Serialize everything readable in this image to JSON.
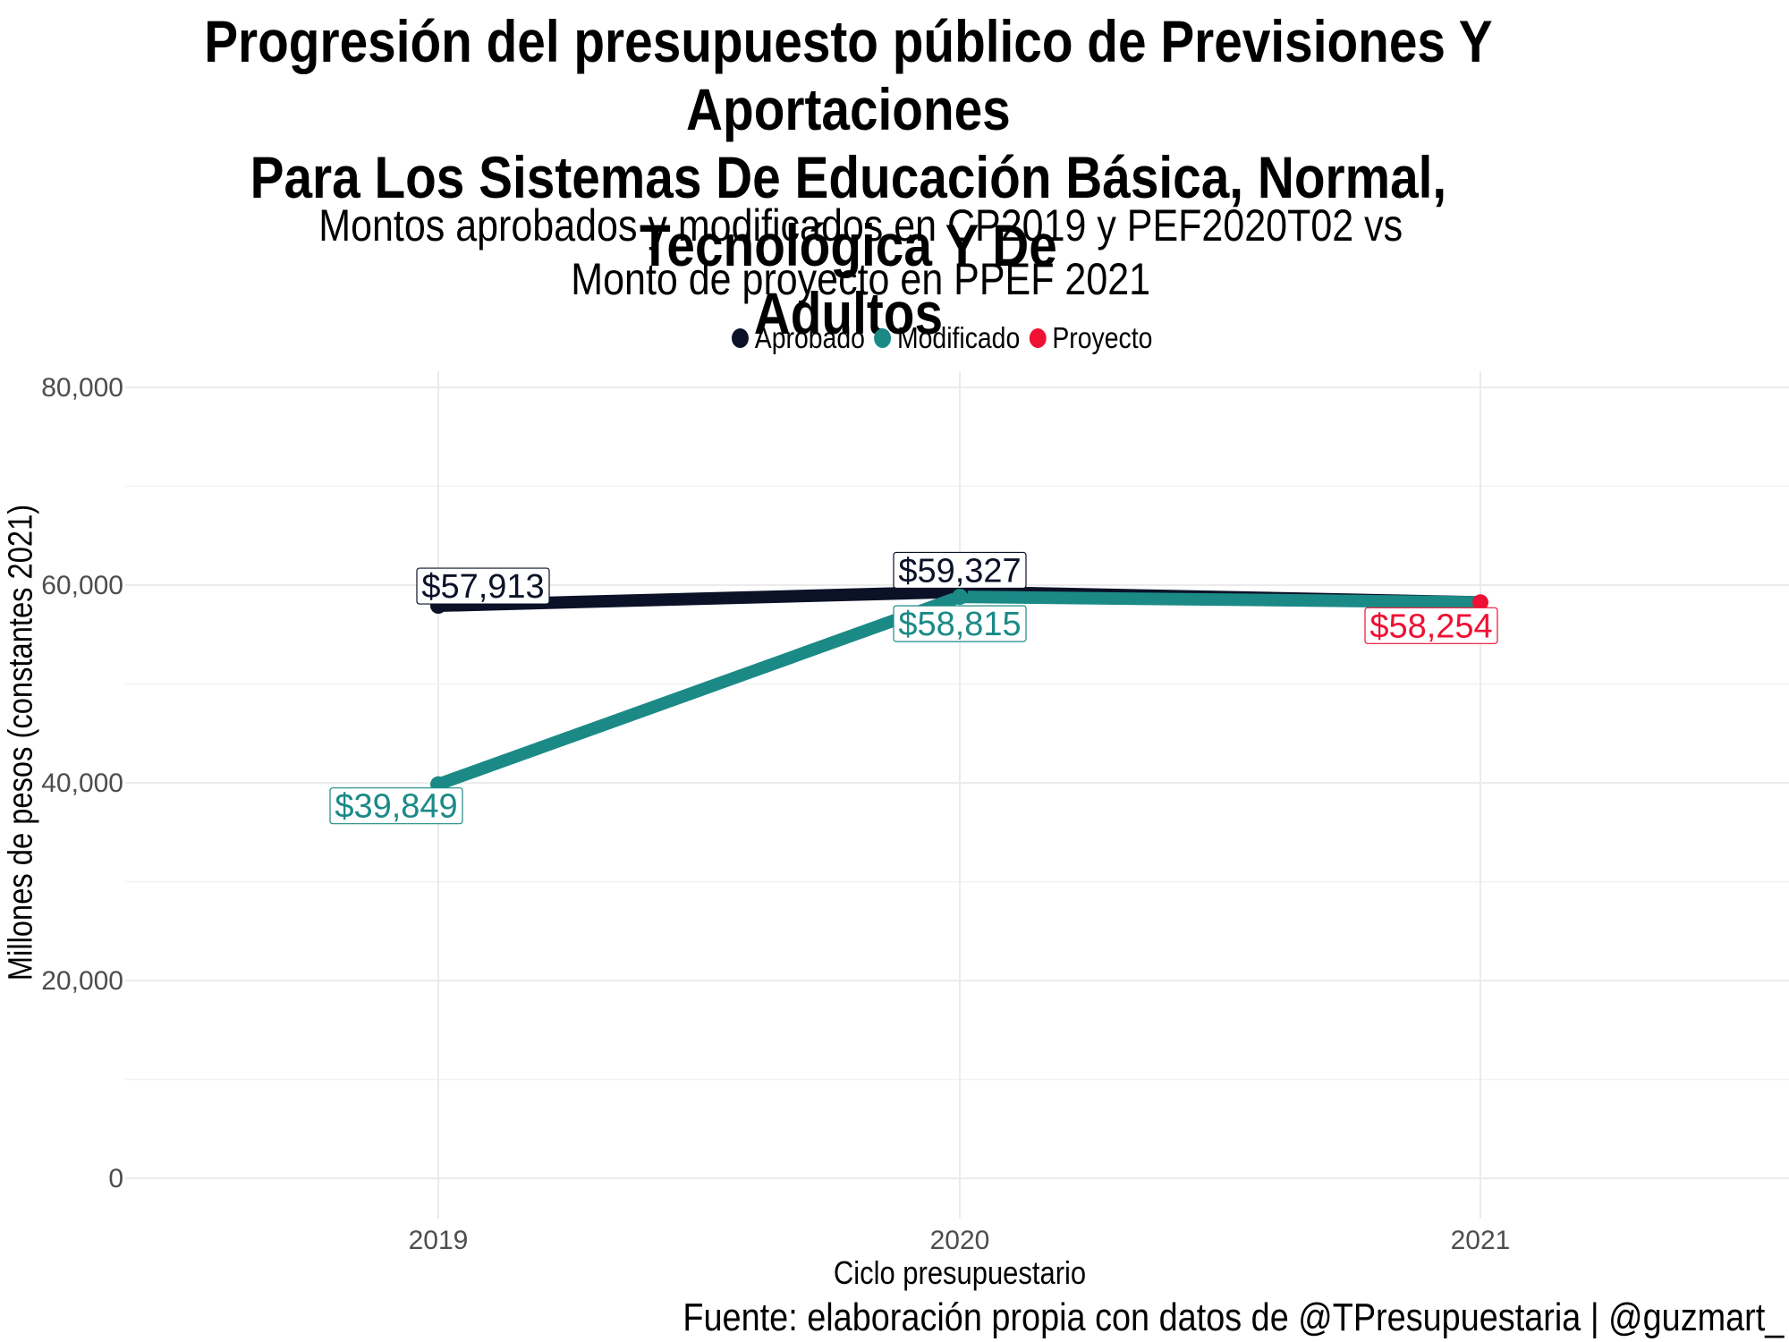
{
  "chart_data": {
    "type": "line",
    "title": "Progresión del presupuesto público de Previsiones Y Aportaciones Para Los Sistemas De Educación Básica, Normal, Tecnológica Y De Adultos",
    "title_lines": [
      "Progresión del presupuesto público de Previsiones Y Aportaciones",
      "Para Los Sistemas De Educación Básica, Normal, Tecnológica Y De",
      "Adultos"
    ],
    "subtitle_lines": [
      "Montos aprobados y modificados en CP2019 y PEF2020T02 vs",
      "Monto de proyecto en PPEF 2021"
    ],
    "xlabel": "Ciclo presupuestario",
    "ylabel": "Millones de pesos (constantes 2021)",
    "caption": "Fuente: elaboración propia con datos de @TPresupuestaria | @guzmart_",
    "categories": [
      "2019",
      "2020",
      "2021"
    ],
    "ylim": [
      0,
      80000
    ],
    "y_ticks": [
      0,
      20000,
      40000,
      60000,
      80000
    ],
    "y_tick_labels": [
      "0",
      "20,000",
      "40,000",
      "60,000",
      "80,000"
    ],
    "grid": true,
    "legend_position": "top",
    "series": [
      {
        "name": "Aprobado",
        "color": "#0b1228",
        "values": [
          57913,
          59327,
          null
        ],
        "labels": [
          "$57,913",
          "$59,327",
          null
        ]
      },
      {
        "name": "Modificado",
        "color": "#1b8a87",
        "values": [
          39849,
          58815,
          null
        ],
        "labels": [
          "$39,849",
          "$58,815",
          null
        ]
      },
      {
        "name": "Proyecto",
        "color": "#ee1133",
        "values": [
          null,
          null,
          58254
        ],
        "labels": [
          null,
          null,
          "$58,254"
        ]
      }
    ],
    "connector_line": {
      "from": "2020",
      "to": "2021",
      "values": [
        58815,
        58254
      ]
    }
  }
}
